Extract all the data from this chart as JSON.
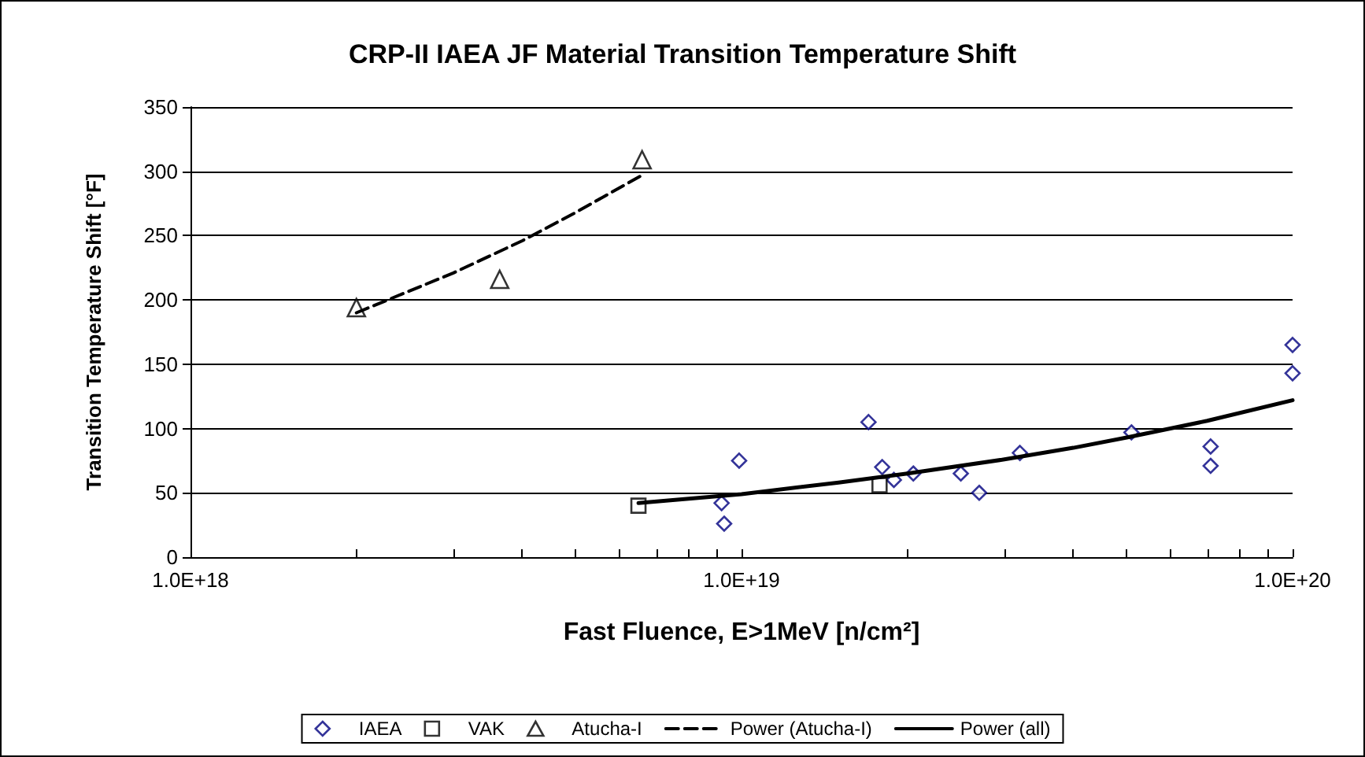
{
  "chart_data": {
    "type": "scatter",
    "title": "CRP-II IAEA JF Material Transition Temperature Shift",
    "xlabel": "Fast Fluence, E>1MeV [n/cm²]",
    "ylabel": "Transition Temperature Shift [°F]",
    "log": "x",
    "grid": "y",
    "legend": "bottom",
    "xlim": [
      1e+18,
      1e+20
    ],
    "xticks": [
      {
        "value": 1e+18,
        "label": "1.0E+18"
      },
      {
        "value": 2e+18,
        "label": null
      },
      {
        "value": 3e+18,
        "label": null
      },
      {
        "value": 4e+18,
        "label": null
      },
      {
        "value": 5e+18,
        "label": null
      },
      {
        "value": 6e+18,
        "label": null
      },
      {
        "value": 7e+18,
        "label": null
      },
      {
        "value": 8e+18,
        "label": null
      },
      {
        "value": 9e+18,
        "label": null
      },
      {
        "value": 1e+19,
        "label": "1.0E+19"
      },
      {
        "value": 2e+19,
        "label": null
      },
      {
        "value": 3e+19,
        "label": null
      },
      {
        "value": 4e+19,
        "label": null
      },
      {
        "value": 5e+19,
        "label": null
      },
      {
        "value": 6e+19,
        "label": null
      },
      {
        "value": 7e+19,
        "label": null
      },
      {
        "value": 8e+19,
        "label": null
      },
      {
        "value": 9e+19,
        "label": null
      },
      {
        "value": 1e+20,
        "label": "1.0E+20"
      }
    ],
    "ylim": [
      0,
      350
    ],
    "yticks": [
      0,
      50,
      100,
      150,
      200,
      250,
      300,
      350
    ],
    "series": [
      {
        "name": "IAEA",
        "marker": "diamond",
        "color": "#000080",
        "x": [
          9.2e+18,
          9.3e+18,
          9.9e+18,
          1.7e+19,
          1.8e+19,
          1.89e+19,
          2.05e+19,
          2.5e+19,
          2.7e+19,
          3.2e+19,
          5.1e+19,
          7.1e+19,
          7.1e+19,
          1e+20,
          1e+20
        ],
        "values": [
          42,
          26,
          75,
          105,
          70,
          60,
          65,
          65,
          50,
          81,
          97,
          86,
          71,
          165,
          143
        ]
      },
      {
        "name": "VAK",
        "marker": "square",
        "color": "#000000",
        "x": [
          6.5e+18,
          1.78e+19
        ],
        "values": [
          40,
          56
        ]
      },
      {
        "name": "Atucha-I",
        "marker": "triangle",
        "color": "#000000",
        "x": [
          2e+18,
          3.64e+18,
          6.6e+18
        ],
        "values": [
          194,
          216,
          309
        ]
      },
      {
        "name": "Power (Atucha-I)",
        "type": "line",
        "marker": "none",
        "line_style": "dashed",
        "color": "#000000",
        "x": [
          2e+18,
          3e+18,
          4e+18,
          5e+18,
          6.6e+18
        ],
        "values": [
          190,
          221,
          246,
          268,
          297
        ]
      },
      {
        "name": "Power (all)",
        "type": "line",
        "marker": "none",
        "line_style": "solid",
        "color": "#000000",
        "x": [
          6.5e+18,
          1e+19,
          1.5e+19,
          2e+19,
          3e+19,
          4e+19,
          5e+19,
          7e+19,
          1e+20
        ],
        "values": [
          42,
          49,
          58,
          65,
          76,
          85,
          93,
          106,
          122
        ]
      }
    ]
  }
}
